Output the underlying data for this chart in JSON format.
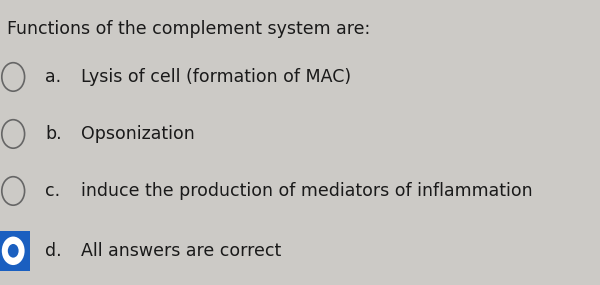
{
  "background_color": "#cccac6",
  "question": "Functions of the complement system are:",
  "options": [
    {
      "label": "a.",
      "text": "Lysis of cell (formation of MAC)",
      "selected": false
    },
    {
      "label": "b.",
      "text": "Opsonization",
      "selected": false
    },
    {
      "label": "c.",
      "text": "induce the production of mediators of inflammation",
      "selected": false
    },
    {
      "label": "d.",
      "text": "All answers are correct",
      "selected": true
    }
  ],
  "question_fontsize": 12.5,
  "option_fontsize": 12.5,
  "question_color": "#1a1a1a",
  "option_color": "#1a1a1a",
  "circle_edge_color": "#666666",
  "selected_blue": "#1a5fc0",
  "selected_border": "#1a5fc0"
}
